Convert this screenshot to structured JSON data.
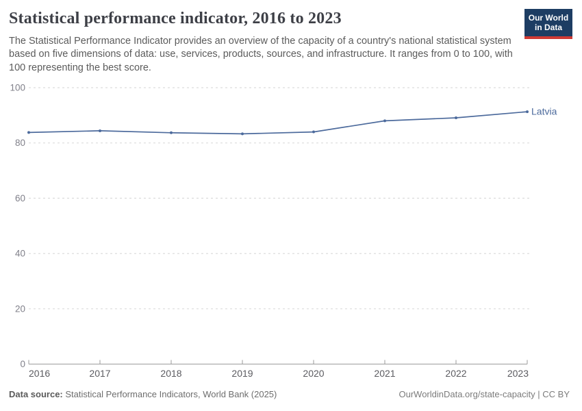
{
  "header": {
    "title": "Statistical performance indicator, 2016 to 2023",
    "subtitle": "The Statistical Performance Indicator provides an overview of the capacity of a country's national statistical system based on five dimensions of data: use, services, products, sources, and infrastructure. It ranges from 0 to 100, with 100 representing the best score.",
    "logo": {
      "line1": "Our World",
      "line2": "in Data",
      "bg_color": "#1d3d63",
      "bar_color": "#cf3a34"
    }
  },
  "chart_data": {
    "type": "line",
    "title": "Statistical performance indicator, 2016 to 2023",
    "x": [
      2016,
      2017,
      2018,
      2019,
      2020,
      2021,
      2022,
      2023
    ],
    "x_tick_labels": [
      "2016",
      "2017",
      "2018",
      "2019",
      "2020",
      "2021",
      "2022",
      "2023"
    ],
    "series": [
      {
        "name": "Latvia",
        "color": "#4C6A9C",
        "values": [
          83.8,
          84.4,
          83.7,
          83.3,
          84.0,
          88.0,
          89.1,
          91.3
        ]
      }
    ],
    "ylim": [
      0,
      100
    ],
    "yticks": [
      0,
      20,
      40,
      60,
      80,
      100
    ],
    "grid": "horizontal-dashed",
    "legend": "line-end-label",
    "xlabel": "",
    "ylabel": ""
  },
  "footer": {
    "source_label": "Data source:",
    "source_text": " Statistical Performance Indicators, World Bank (2025)",
    "link_text": "OurWorldinData.org/state-capacity | CC BY"
  },
  "colors": {
    "line": "#4C6A9C",
    "grid": "#dcdcdc",
    "axis": "#9a9a9a",
    "y_tick_text": "#80808a",
    "x_tick_text": "#5b5b60",
    "title_text": "#3d3f46",
    "subtitle_text": "#5b5b5b"
  }
}
